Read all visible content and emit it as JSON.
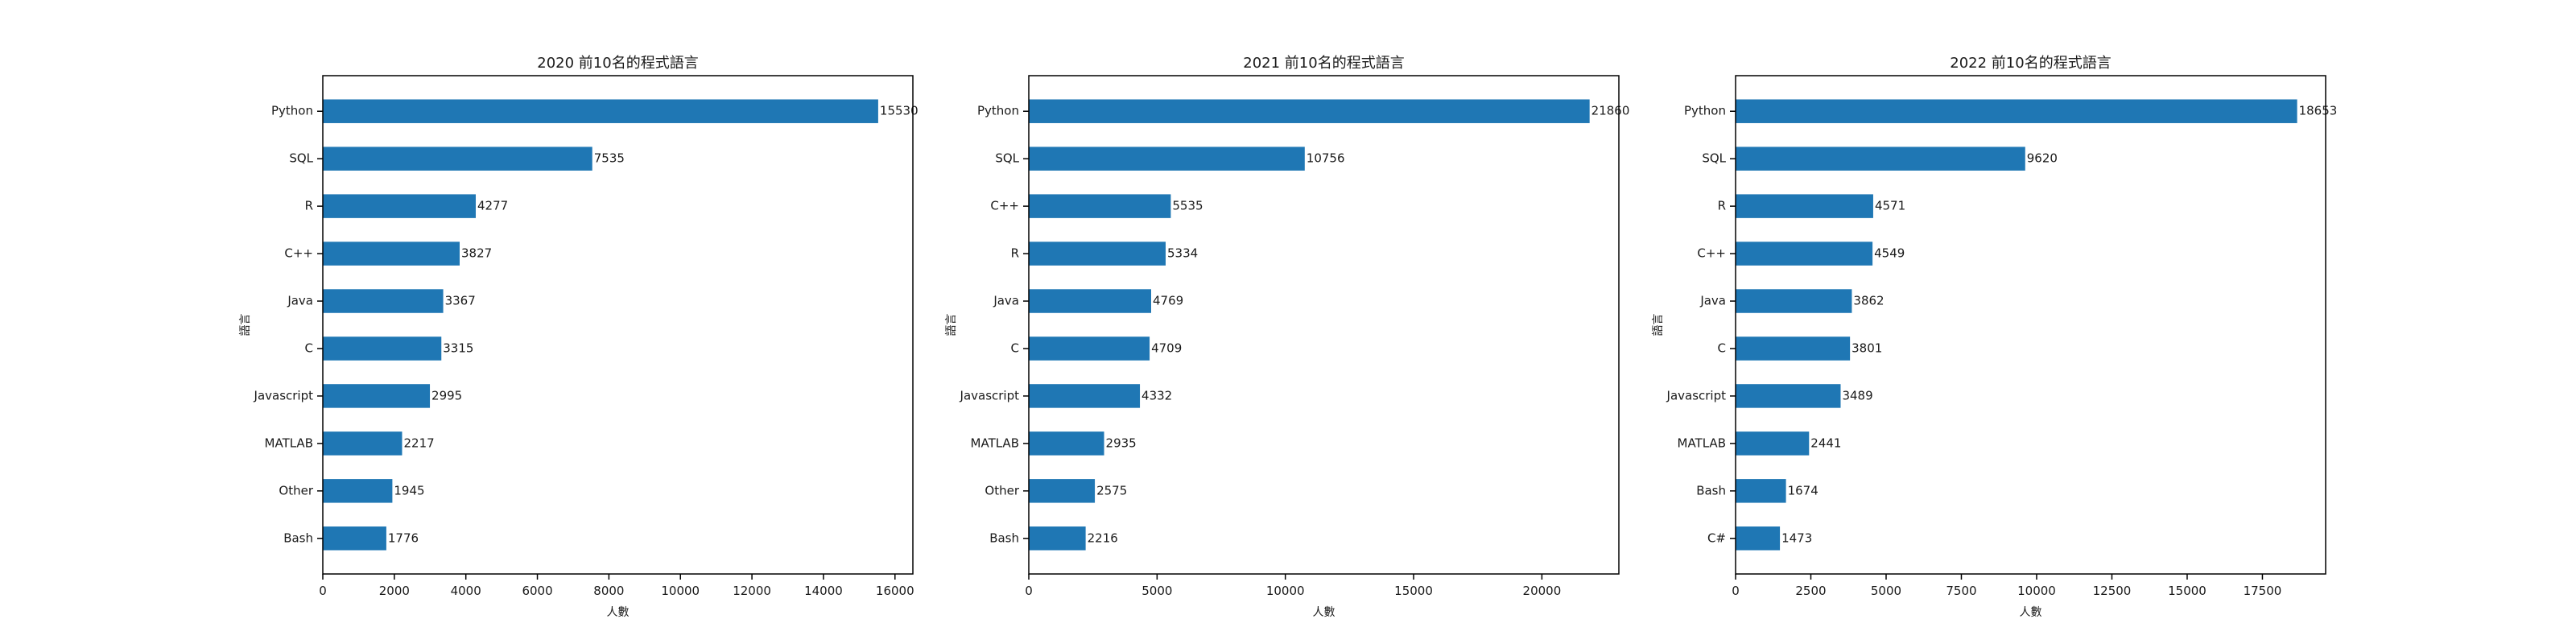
{
  "chart_data": [
    {
      "type": "bar",
      "orientation": "horizontal",
      "title": "2020 前10名的程式語言",
      "xlabel": "人數",
      "ylabel": "語言",
      "categories": [
        "Python",
        "SQL",
        "R",
        "C++",
        "Java",
        "C",
        "Javascript",
        "MATLAB",
        "Other",
        "Bash"
      ],
      "values": [
        15530,
        7535,
        4277,
        3827,
        3367,
        3315,
        2995,
        2217,
        1945,
        1776
      ],
      "xlim": [
        0,
        16500
      ],
      "xticks": [
        0,
        2000,
        4000,
        6000,
        8000,
        10000,
        12000,
        14000,
        16000
      ],
      "color": "#1f77b4",
      "grid": false
    },
    {
      "type": "bar",
      "orientation": "horizontal",
      "title": "2021 前10名的程式語言",
      "xlabel": "人數",
      "ylabel": "語言",
      "categories": [
        "Python",
        "SQL",
        "C++",
        "R",
        "Java",
        "C",
        "Javascript",
        "MATLAB",
        "Other",
        "Bash"
      ],
      "values": [
        21860,
        10756,
        5535,
        5334,
        4769,
        4709,
        4332,
        2935,
        2575,
        2216
      ],
      "xlim": [
        0,
        23000
      ],
      "xticks": [
        0,
        5000,
        10000,
        15000,
        20000
      ],
      "color": "#1f77b4",
      "grid": false
    },
    {
      "type": "bar",
      "orientation": "horizontal",
      "title": "2022 前10名的程式語言",
      "xlabel": "人數",
      "ylabel": "語言",
      "categories": [
        "Python",
        "SQL",
        "R",
        "C++",
        "Java",
        "C",
        "Javascript",
        "MATLAB",
        "Bash",
        "C#"
      ],
      "values": [
        18653,
        9620,
        4571,
        4549,
        3862,
        3801,
        3489,
        2441,
        1674,
        1473
      ],
      "xlim": [
        0,
        19600
      ],
      "xticks": [
        0,
        2500,
        5000,
        7500,
        10000,
        12500,
        15000,
        17500
      ],
      "color": "#1f77b4",
      "grid": false
    }
  ]
}
